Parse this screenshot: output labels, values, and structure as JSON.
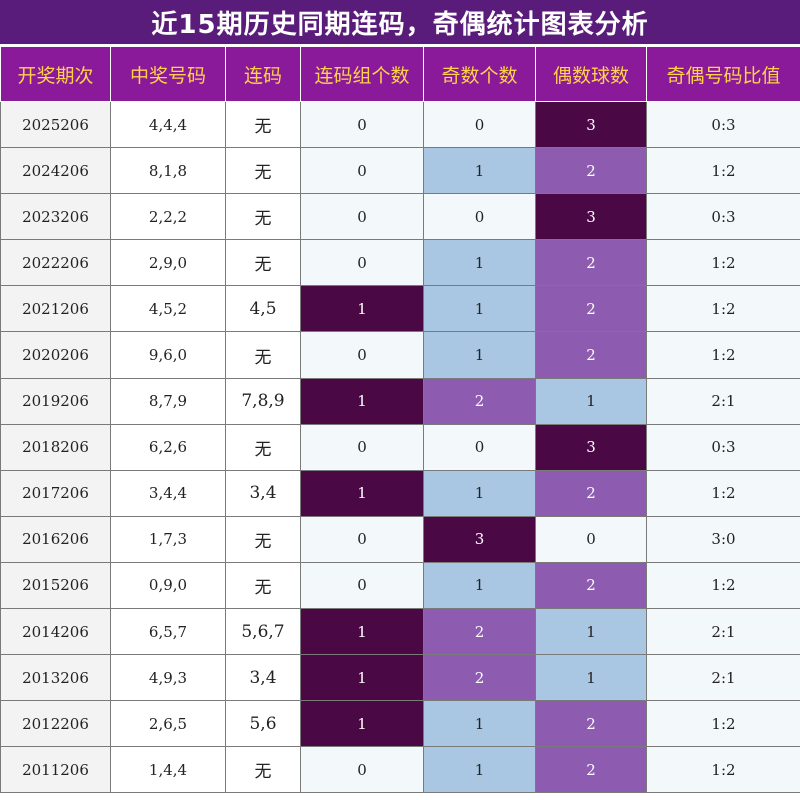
{
  "title": "近15期历史同期连码，奇偶统计图表分析",
  "headers": [
    "开奖期次",
    "中奖号码",
    "连码",
    "连码组个数",
    "奇数个数",
    "偶数球数",
    "奇偶号码比值"
  ],
  "chart_data": {
    "type": "table",
    "title": "近15期历史同期连码，奇偶统计图表分析",
    "columns": [
      "开奖期次",
      "中奖号码",
      "连码",
      "连码组个数",
      "奇数个数",
      "偶数球数",
      "奇偶号码比值"
    ],
    "rows": [
      [
        "2025206",
        "4,4,4",
        "无",
        "0",
        "0",
        "3",
        "0:3"
      ],
      [
        "2024206",
        "8,1,8",
        "无",
        "0",
        "1",
        "2",
        "1:2"
      ],
      [
        "2023206",
        "2,2,2",
        "无",
        "0",
        "0",
        "3",
        "0:3"
      ],
      [
        "2022206",
        "2,9,0",
        "无",
        "0",
        "1",
        "2",
        "1:2"
      ],
      [
        "2021206",
        "4,5,2",
        "4,5",
        "1",
        "1",
        "2",
        "1:2"
      ],
      [
        "2020206",
        "9,6,0",
        "无",
        "0",
        "1",
        "2",
        "1:2"
      ],
      [
        "2019206",
        "8,7,9",
        "7,8,9",
        "1",
        "2",
        "1",
        "2:1"
      ],
      [
        "2018206",
        "6,2,6",
        "无",
        "0",
        "0",
        "3",
        "0:3"
      ],
      [
        "2017206",
        "3,4,4",
        "3,4",
        "1",
        "1",
        "2",
        "1:2"
      ],
      [
        "2016206",
        "1,7,3",
        "无",
        "0",
        "3",
        "0",
        "3:0"
      ],
      [
        "2015206",
        "0,9,0",
        "无",
        "0",
        "1",
        "2",
        "1:2"
      ],
      [
        "2014206",
        "6,5,7",
        "5,6,7",
        "1",
        "2",
        "1",
        "2:1"
      ],
      [
        "2013206",
        "4,9,3",
        "3,4",
        "1",
        "2",
        "1",
        "2:1"
      ],
      [
        "2012206",
        "2,6,5",
        "5,6",
        "1",
        "1",
        "2",
        "1:2"
      ],
      [
        "2011206",
        "1,4,4",
        "无",
        "0",
        "1",
        "2",
        "1:2"
      ]
    ]
  },
  "colors": {
    "title_bg": "#5a1c7a",
    "header_bg": "#8a1a99",
    "header_text": "#ffd24a",
    "level_3": "#4a0845",
    "level_2": "#8d5bb0",
    "level_1": "#a9c7e2",
    "level_0": "#f3f8fb"
  }
}
